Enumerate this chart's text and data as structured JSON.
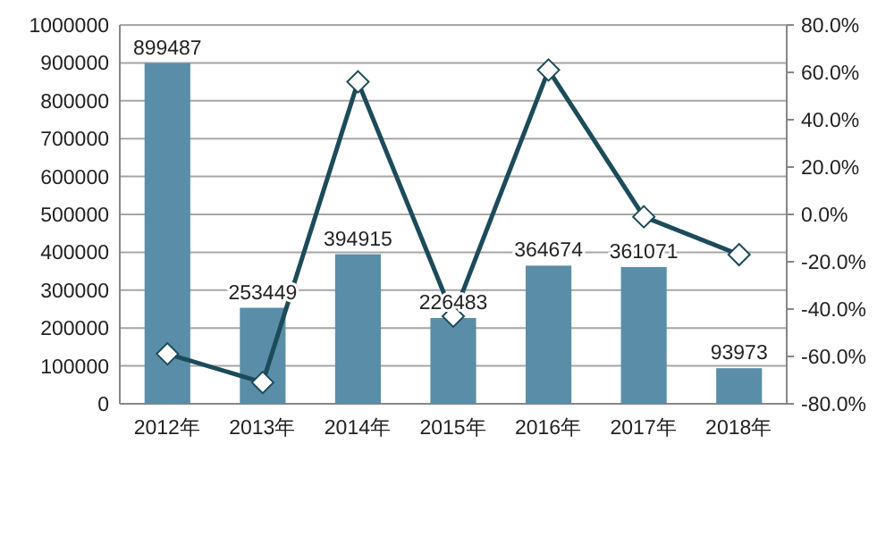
{
  "chart_data": {
    "type": "bar",
    "categories": [
      "2012年",
      "2013年",
      "2014年",
      "2015年",
      "2016年",
      "2017年",
      "2018年"
    ],
    "series": [
      {
        "color": "#5a8ea8",
        "values": [
          899487,
          253449,
          394915,
          226483,
          364674,
          361071,
          93973
        ],
        "value_labels": [
          "899487",
          "253449",
          "394915",
          "226483",
          "364674",
          "361071",
          "93973"
        ]
      },
      {
        "type": "line",
        "axis": "y2",
        "color": "#1c4b5a",
        "marker": "diamond",
        "values": [
          -58.9,
          -71,
          56,
          -43,
          61,
          -1,
          -17
        ]
      }
    ],
    "ylim": [
      0,
      1000000
    ],
    "yticks": [
      0,
      100000,
      200000,
      300000,
      400000,
      500000,
      600000,
      700000,
      800000,
      900000,
      1000000
    ],
    "y2lim": [
      -80,
      80
    ],
    "y2ticks": [
      {
        "value": -80,
        "label": "-80.0%"
      },
      {
        "value": -60,
        "label": "-60.0%"
      },
      {
        "value": -40,
        "label": "-40.0%"
      },
      {
        "value": -20,
        "label": "-20.0%"
      },
      {
        "value": 0,
        "label": "0.0%"
      },
      {
        "value": 20,
        "label": "20.0%"
      },
      {
        "value": 40,
        "label": "40.0%"
      },
      {
        "value": 60,
        "label": "60.0%"
      },
      {
        "value": 80,
        "label": "80.0%"
      }
    ],
    "grid": "y"
  }
}
